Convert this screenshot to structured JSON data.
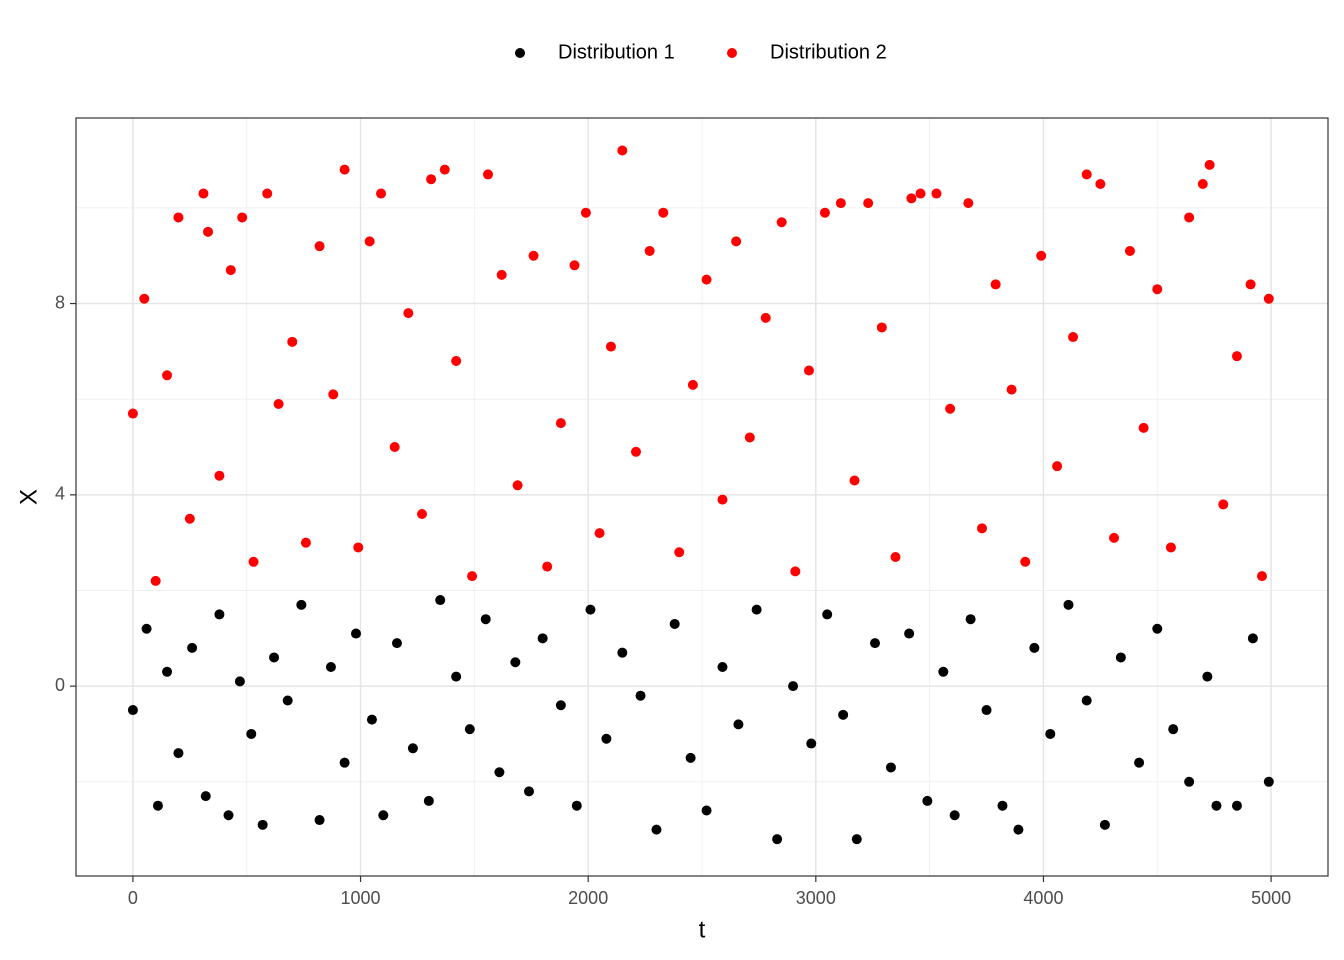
{
  "chart_data": {
    "type": "scatter",
    "xlabel": "t",
    "ylabel": "X",
    "xlim": [
      -250,
      5250
    ],
    "xticks": [
      0,
      1000,
      2000,
      3000,
      4000,
      5000
    ],
    "ylim": [
      -3.97,
      11.88
    ],
    "yticks": [
      0,
      4,
      8
    ],
    "grid": true,
    "legend": "top",
    "series": [
      {
        "name": "Distribution 1",
        "color": "#000000",
        "x": [
          0,
          60,
          110,
          150,
          200,
          260,
          320,
          380,
          420,
          470,
          520,
          570,
          620,
          680,
          740,
          820,
          870,
          930,
          980,
          1050,
          1100,
          1160,
          1230,
          1300,
          1350,
          1420,
          1480,
          1550,
          1610,
          1680,
          1740,
          1800,
          1880,
          1950,
          2010,
          2080,
          2150,
          2230,
          2300,
          2380,
          2450,
          2520,
          2590,
          2660,
          2740,
          2830,
          2900,
          2980,
          3050,
          3120,
          3180,
          3260,
          3330,
          3410,
          3490,
          3560,
          3610,
          3680,
          3750,
          3820,
          3890,
          3960,
          4030,
          4110,
          4190,
          4270,
          4340,
          4420,
          4500,
          4570,
          4640,
          4720,
          4760,
          4850,
          4920,
          4990
        ],
        "values": [
          -0.5,
          1.2,
          -2.5,
          0.3,
          -1.4,
          0.8,
          -2.3,
          1.5,
          -2.7,
          0.1,
          -1.0,
          -2.9,
          0.6,
          -0.3,
          1.7,
          -2.8,
          0.4,
          -1.6,
          1.1,
          -0.7,
          -2.7,
          0.9,
          -1.3,
          -2.4,
          1.8,
          0.2,
          -0.9,
          1.4,
          -1.8,
          0.5,
          -2.2,
          1.0,
          -0.4,
          -2.5,
          1.6,
          -1.1,
          0.7,
          -0.2,
          -3.0,
          1.3,
          -1.5,
          -2.6,
          0.4,
          -0.8,
          1.6,
          -3.2,
          0.0,
          -1.2,
          1.5,
          -0.6,
          -3.2,
          0.9,
          -1.7,
          1.1,
          -2.4,
          0.3,
          -2.7,
          1.4,
          -0.5,
          -2.5,
          -3.0,
          0.8,
          -1.0,
          1.7,
          -0.3,
          -2.9,
          0.6,
          -1.6,
          1.2,
          -0.9,
          -2.0,
          0.2,
          -2.5,
          -2.5,
          1.0,
          -2.0
        ]
      },
      {
        "name": "Distribution 2",
        "color": "#ff0000",
        "x": [
          0,
          50,
          100,
          150,
          200,
          250,
          310,
          330,
          380,
          430,
          480,
          530,
          590,
          640,
          700,
          760,
          820,
          880,
          930,
          990,
          1040,
          1090,
          1150,
          1210,
          1270,
          1310,
          1370,
          1420,
          1490,
          1560,
          1620,
          1690,
          1760,
          1820,
          1880,
          1940,
          1990,
          2050,
          2100,
          2150,
          2210,
          2270,
          2330,
          2400,
          2460,
          2520,
          2590,
          2650,
          2710,
          2780,
          2850,
          2910,
          2970,
          3040,
          3110,
          3170,
          3230,
          3290,
          3350,
          3420,
          3460,
          3530,
          3590,
          3670,
          3730,
          3790,
          3860,
          3920,
          3990,
          4060,
          4130,
          4190,
          4250,
          4310,
          4380,
          4440,
          4500,
          4560,
          4640,
          4700,
          4730,
          4790,
          4850,
          4910,
          4960,
          4990
        ],
        "values": [
          5.7,
          8.1,
          2.2,
          6.5,
          9.8,
          3.5,
          10.3,
          9.5,
          4.4,
          8.7,
          9.8,
          2.6,
          10.3,
          5.9,
          7.2,
          3.0,
          9.2,
          6.1,
          10.8,
          2.9,
          9.3,
          10.3,
          5.0,
          7.8,
          3.6,
          10.6,
          10.8,
          6.8,
          2.3,
          10.7,
          8.6,
          4.2,
          9.0,
          2.5,
          5.5,
          8.8,
          9.9,
          3.2,
          7.1,
          11.2,
          4.9,
          9.1,
          9.9,
          2.8,
          6.3,
          8.5,
          3.9,
          9.3,
          5.2,
          7.7,
          9.7,
          2.4,
          6.6,
          9.9,
          10.1,
          4.3,
          10.1,
          7.5,
          2.7,
          10.2,
          10.3,
          10.3,
          5.8,
          10.1,
          3.3,
          8.4,
          6.2,
          2.6,
          9.0,
          4.6,
          7.3,
          10.7,
          10.5,
          3.1,
          9.1,
          5.4,
          8.3,
          2.9,
          9.8,
          10.5,
          10.9,
          3.8,
          6.9,
          8.4,
          2.3,
          8.1
        ]
      }
    ]
  }
}
